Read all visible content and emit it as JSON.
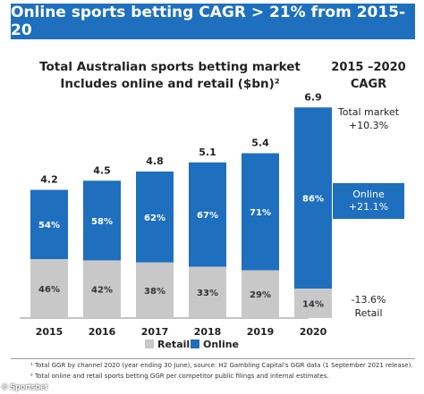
{
  "banner": {
    "title": "Online sports betting CAGR > 21% from 2015-20"
  },
  "cagr_panel": {
    "header_line1": "2015 –2020",
    "header_line2": "CAGR",
    "total_label": "Total market",
    "total_value": "+10.3%",
    "online_label": "Online",
    "online_value": "+21.1%",
    "retail_value": "-13.6%",
    "retail_label": "Retail"
  },
  "footnotes": {
    "fn1": "¹ Total GGR by channel 2020 (year ending 30 June), source: H2 Gambling Capital's GGR data (1 September 2021 release).",
    "fn2": "² Total online and retail sports betting GGR per competitor public filings and internal estimates."
  },
  "credit": "© Sportsbet",
  "colors": {
    "online": "#1f6fbf",
    "retail": "#c8c8c8",
    "banner": "#1f6fbf"
  },
  "chart_data": {
    "type": "bar",
    "stacked": true,
    "title_line1": "Total Australian sports betting market",
    "title_line2": "Includes online and retail ($bn)²",
    "categories": [
      "2015",
      "2016",
      "2017",
      "2018",
      "2019",
      "2020"
    ],
    "totals": [
      4.2,
      4.5,
      4.8,
      5.1,
      5.4,
      6.9
    ],
    "series": [
      {
        "name": "Retail",
        "color": "#c8c8c8",
        "share_pct": [
          46,
          42,
          38,
          33,
          29,
          14
        ],
        "labels": [
          "46%",
          "42%",
          "38%",
          "33%",
          "29%",
          "14%"
        ]
      },
      {
        "name": "Online",
        "color": "#1f6fbf",
        "share_pct": [
          54,
          58,
          62,
          67,
          71,
          86
        ],
        "labels": [
          "54%",
          "58%",
          "62%",
          "67%",
          "71%",
          "86%"
        ]
      }
    ],
    "legend_position": "bottom",
    "ylim": [
      0,
      7.2
    ],
    "grid": false
  }
}
